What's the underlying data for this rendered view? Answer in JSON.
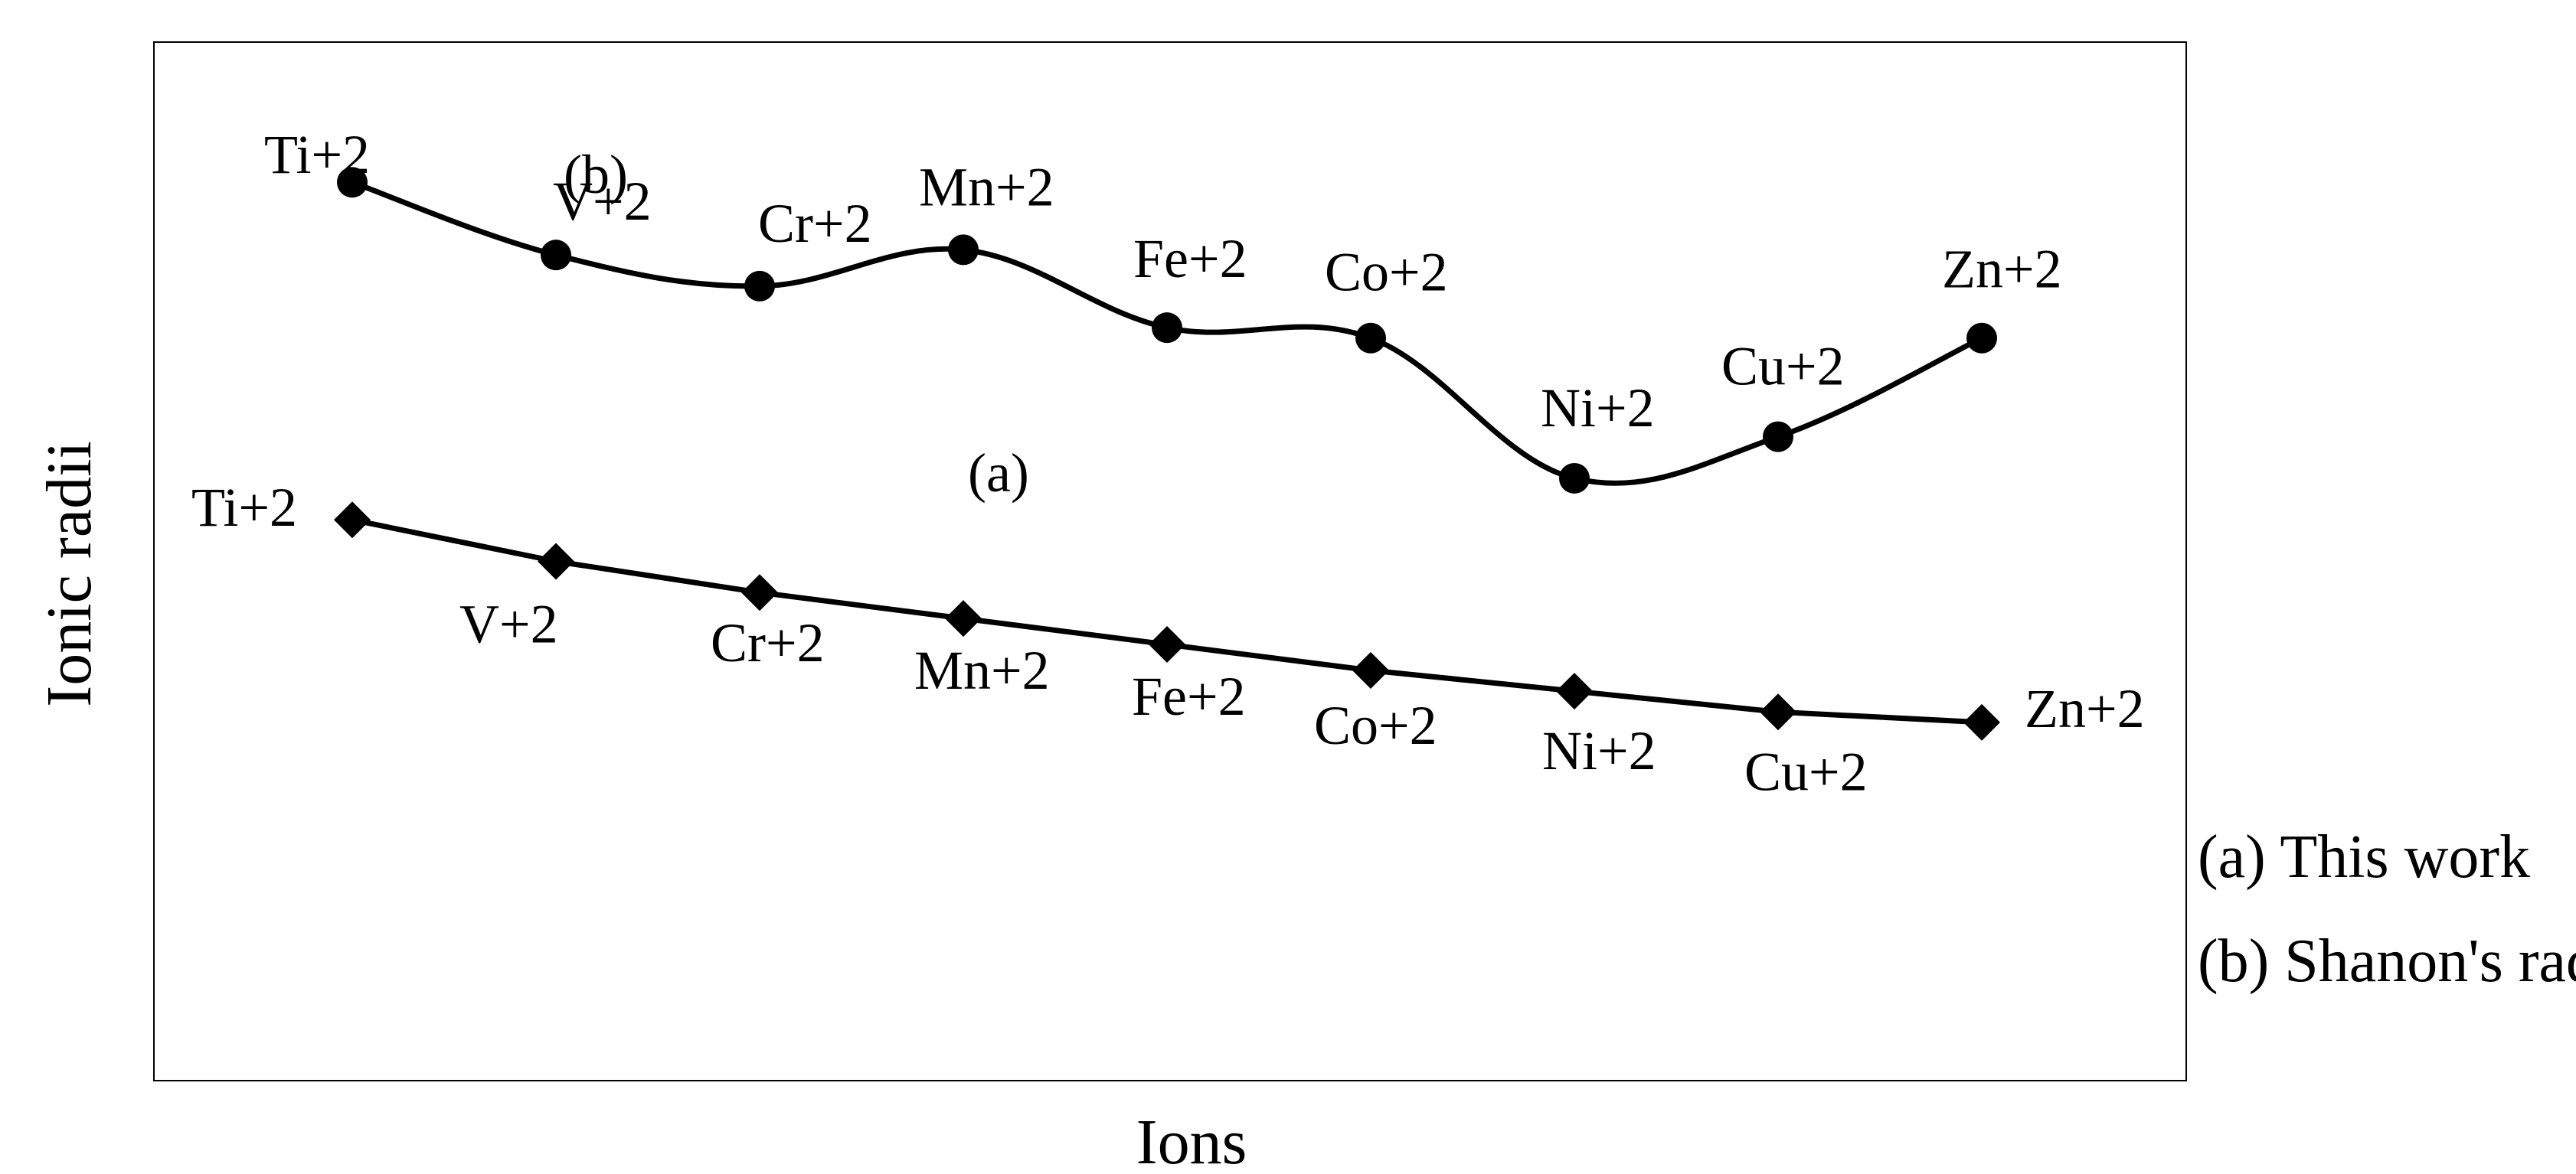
{
  "chart_data": {
    "type": "line",
    "title": "",
    "xlabel": "Ions",
    "ylabel": "Ionic radii",
    "grid": false,
    "categories": [
      "Ti+2",
      "V+2",
      "Cr+2",
      "Mn+2",
      "Fe+2",
      "Co+2",
      "Ni+2",
      "Cu+2",
      "Zn+2"
    ],
    "ylim": [
      0,
      100
    ],
    "series": [
      {
        "name": "(b)",
        "legend": "(b) Shanon's radii",
        "marker": "circle",
        "values": [
          86.5,
          79.5,
          76.5,
          80,
          72.5,
          71.5,
          58,
          62,
          71.5
        ],
        "point_labels": [
          "Ti+2",
          "V+2",
          "Cr+2",
          "Mn+2",
          "Fe+2",
          "Co+2",
          "Ni+2",
          "Cu+2",
          "Zn+2"
        ],
        "curve_label": "(b)"
      },
      {
        "name": "(a)",
        "legend": "(a) This work",
        "marker": "diamond",
        "values": [
          54,
          50,
          47,
          44.5,
          42,
          39.5,
          37.5,
          35.5,
          34.5
        ],
        "point_labels": [
          "Ti+2",
          "V+2",
          "Cr+2",
          "Mn+2",
          "Fe+2",
          "Co+2",
          "Ni+2",
          "Cu+2",
          "Zn+2"
        ],
        "curve_label": "(a)"
      }
    ],
    "legend_position": "right"
  }
}
